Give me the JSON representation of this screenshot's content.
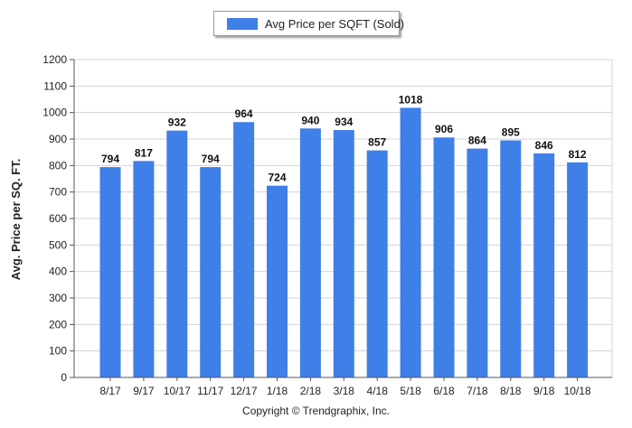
{
  "legend": {
    "label": "Avg Price per SQFT (Sold)"
  },
  "footer": {
    "copyright": "Copyright © Trendgraphix, Inc."
  },
  "colors": {
    "bar": "#3f7fe8",
    "grid": "#d4d4d4",
    "axis": "#555555",
    "text": "#222222"
  },
  "chart_data": {
    "type": "bar",
    "title": "",
    "xlabel": "",
    "ylabel": "Avg. Price per SQ. FT.",
    "ylim": [
      0,
      1200
    ],
    "yticks": [
      0,
      100,
      200,
      300,
      400,
      500,
      600,
      700,
      800,
      900,
      1000,
      1100,
      1200
    ],
    "grid": true,
    "legend_position": "top-center",
    "categories": [
      "8/17",
      "9/17",
      "10/17",
      "11/17",
      "12/17",
      "1/18",
      "2/18",
      "3/18",
      "4/18",
      "5/18",
      "6/18",
      "7/18",
      "8/18",
      "9/18",
      "10/18"
    ],
    "series": [
      {
        "name": "Avg Price per SQFT (Sold)",
        "values": [
          794,
          817,
          932,
          794,
          964,
          724,
          940,
          934,
          857,
          1018,
          906,
          864,
          895,
          846,
          812
        ]
      }
    ]
  }
}
